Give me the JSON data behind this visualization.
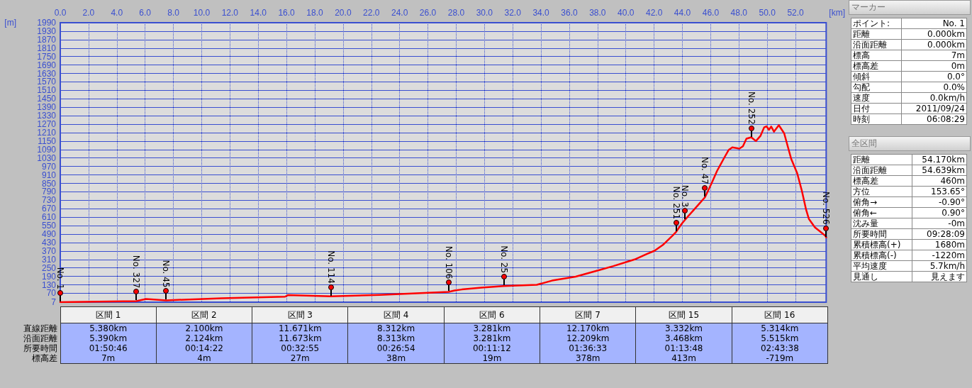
{
  "chart_data": [
    {
      "type": "line",
      "xlabel": "[km]",
      "ylabel": "[m]",
      "x": [
        0,
        5.38,
        6.07,
        7.48,
        11.4,
        15.9,
        16.1,
        19.15,
        22.6,
        27.46,
        27.9,
        28.4,
        29.78,
        31.37,
        33.7,
        34.78,
        36.45,
        38.12,
        39.12,
        40.62,
        41.45,
        42.03,
        42.62,
        43.28,
        43.55,
        43.95,
        44.45,
        45.12,
        45.6,
        46.12,
        46.45,
        46.95,
        47.28,
        47.53,
        48.03,
        48.28,
        48.53,
        48.87,
        49.2,
        49.53,
        49.78,
        49.95,
        50.12,
        50.28,
        50.48,
        50.82,
        51.2,
        51.45,
        51.7,
        52.12,
        52.45,
        52.75,
        52.95,
        53.37,
        53.78,
        54.12,
        54.17
      ],
      "series": [
        {
          "color": "#ff0000",
          "values": [
            7,
            15,
            30,
            20,
            35,
            46,
            57,
            48,
            59,
            80,
            90,
            97,
            110,
            122,
            130,
            160,
            188,
            235,
            263,
            310,
            347,
            372,
            413,
            477,
            505,
            563,
            622,
            697,
            752,
            863,
            938,
            1030,
            1088,
            1105,
            1097,
            1113,
            1167,
            1177,
            1150,
            1188,
            1247,
            1255,
            1230,
            1253,
            1217,
            1263,
            1205,
            1113,
            1022,
            922,
            797,
            663,
            597,
            538,
            505,
            477,
            467
          ]
        }
      ],
      "xlim": [
        0,
        54.17
      ],
      "xticks": [
        {
          "value": 0,
          "label": "0.0"
        },
        {
          "value": 2,
          "label": "2.0"
        },
        {
          "value": 4,
          "label": "4.0"
        },
        {
          "value": 6,
          "label": "6.0"
        },
        {
          "value": 8,
          "label": "8.0"
        },
        {
          "value": 10,
          "label": "10.0"
        },
        {
          "value": 12,
          "label": "12.0"
        },
        {
          "value": 14,
          "label": "14.0"
        },
        {
          "value": 16,
          "label": "16.0"
        },
        {
          "value": 18,
          "label": "18.0"
        },
        {
          "value": 20,
          "label": "20.0"
        },
        {
          "value": 22,
          "label": "22.0"
        },
        {
          "value": 24,
          "label": "24.0"
        },
        {
          "value": 26,
          "label": "26.0"
        },
        {
          "value": 28,
          "label": "28.0"
        },
        {
          "value": 30,
          "label": "30.0"
        },
        {
          "value": 32,
          "label": "32.0"
        },
        {
          "value": 34,
          "label": "34.0"
        },
        {
          "value": 36,
          "label": "36.0"
        },
        {
          "value": 38,
          "label": "38.0"
        },
        {
          "value": 40,
          "label": "40.0"
        },
        {
          "value": 42,
          "label": "42.0"
        },
        {
          "value": 44,
          "label": "44.0"
        },
        {
          "value": 46,
          "label": "46.0"
        },
        {
          "value": 48,
          "label": "48.0"
        },
        {
          "value": 50,
          "label": "50.0"
        },
        {
          "value": 52,
          "label": "52.0"
        }
      ],
      "ylim": [
        7,
        1990
      ],
      "yticks": [
        7,
        70,
        130,
        190,
        250,
        310,
        370,
        430,
        490,
        550,
        610,
        670,
        730,
        790,
        850,
        910,
        970,
        1030,
        1090,
        1150,
        1210,
        1270,
        1330,
        1390,
        1450,
        1510,
        1570,
        1630,
        1690,
        1750,
        1810,
        1870,
        1930,
        1990
      ],
      "grid": true,
      "line_style": "solid",
      "marker": "none",
      "annotations": [
        {
          "text": "No. 1",
          "x": 0,
          "y": 7
        },
        {
          "text": "No. 327",
          "x": 5.38,
          "y": 15
        },
        {
          "text": "No. 45",
          "x": 7.48,
          "y": 20
        },
        {
          "text": "No. 114",
          "x": 19.15,
          "y": 48
        },
        {
          "text": "No. 106",
          "x": 27.46,
          "y": 80
        },
        {
          "text": "No. 25",
          "x": 31.37,
          "y": 122
        },
        {
          "text": "No. 251",
          "x": 43.55,
          "y": 505
        },
        {
          "text": "No. 3",
          "x": 44.2,
          "y": 590
        },
        {
          "text": "No. 47",
          "x": 45.6,
          "y": 752
        },
        {
          "text": "No. 252",
          "x": 48.87,
          "y": 1177
        },
        {
          "text": "No. 526",
          "x": 54.17,
          "y": 467
        }
      ]
    },
    {
      "type": "other",
      "title": "マーカー",
      "annotations": [
        "ポイント:",
        "No. 1",
        "距離",
        "0.000km",
        "沿面距離",
        "0.000km",
        "標高",
        "7m",
        "標高差",
        "0m",
        "傾斜",
        "0.0°",
        "勾配",
        "0.0%",
        "速度",
        "0.0km/h",
        "日付",
        "2011/09/24",
        "時刻",
        "06:08:29"
      ]
    },
    {
      "type": "other",
      "title": "全区間",
      "annotations": [
        "距離",
        "54.170km",
        "沿面距離",
        "54.639km",
        "標高差",
        "460m",
        "方位",
        "153.65°",
        "俯角→",
        "-0.90°",
        "俯角←",
        "0.90°",
        "沈み量",
        "-0m",
        "所要時間",
        "09:28:09",
        "累積標高(+)",
        "1680m",
        "累積標高(-)",
        "-1220m",
        "平均速度",
        "5.7km/h",
        "見通し",
        "見えます"
      ]
    },
    {
      "type": "other",
      "categories": [
        "区間 1",
        "区間 2",
        "区間 3",
        "区間 4",
        "区間 6",
        "区間 7",
        "区間 15",
        "区間 16"
      ],
      "y_categories": [
        "直線距離",
        "沿面距離",
        "所要時間",
        "標高差"
      ],
      "cell_labels": [
        [
          "5.380km",
          "2.100km",
          "11.671km",
          "8.312km",
          "3.281km",
          "12.170km",
          "3.332km",
          "5.314km"
        ],
        [
          "5.390km",
          "2.124km",
          "11.673km",
          "8.313km",
          "3.281km",
          "12.209km",
          "3.468km",
          "5.515km"
        ],
        [
          "01:50:46",
          "00:14:22",
          "00:32:55",
          "00:26:54",
          "00:11:12",
          "01:36:33",
          "01:13:48",
          "02:43:38"
        ],
        [
          "7m",
          "4m",
          "27m",
          "38m",
          "19m",
          "378m",
          "413m",
          "-719m"
        ]
      ]
    }
  ]
}
